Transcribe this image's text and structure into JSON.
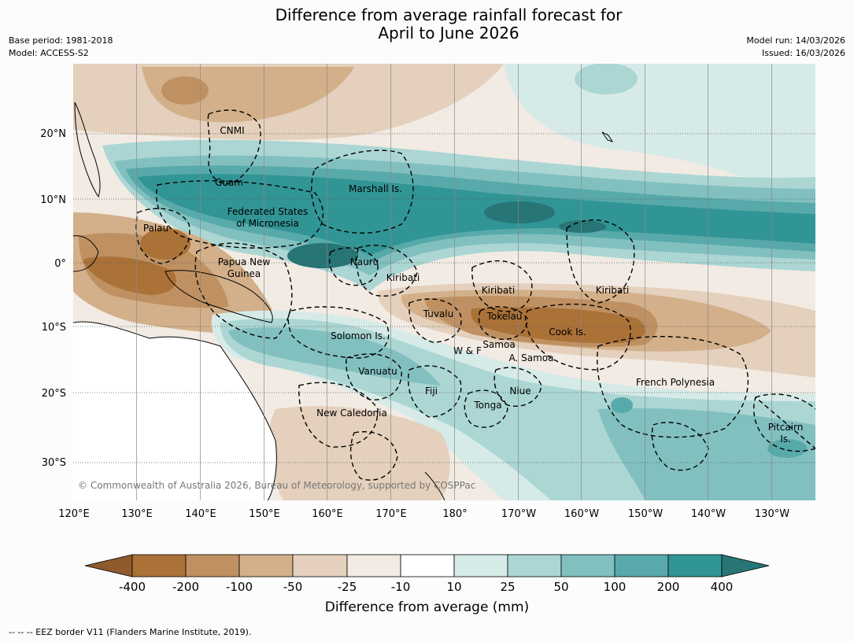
{
  "title_line1": "Difference from average rainfall forecast for",
  "title_line2": "April to June 2026",
  "meta_left": {
    "base_period": "Base period: 1981-2018",
    "model": "Model: ACCESS-S2"
  },
  "meta_right": {
    "model_run": "Model run: 14/03/2026",
    "issued": "Issued: 16/03/2026"
  },
  "colors": {
    "brown_4": "#8f5a2c",
    "brown_3": "#ab7238",
    "brown_2": "#bf9162",
    "brown_1": "#d3b08a",
    "brown_0": "#e4d0bc",
    "tan_light": "#f2ebe3",
    "white": "#ffffff",
    "teal_0": "#d6ebe8",
    "teal_1": "#abd6d4",
    "teal_2": "#82c0c0",
    "teal_3": "#58aaaa",
    "teal_4": "#329595",
    "teal_5": "#277575"
  },
  "lat_labels": [
    "20°N",
    "10°N",
    "0°",
    "10°S",
    "20°S",
    "30°S"
  ],
  "lon_labels": [
    "120°E",
    "130°E",
    "140°E",
    "150°E",
    "160°E",
    "170°E",
    "180°",
    "170°W",
    "160°W",
    "150°W",
    "140°W",
    "130°W"
  ],
  "regions": {
    "cnmi": "CNMI",
    "guam": "Guam",
    "marshall": "Marshall Is.",
    "fsm1": "Federated States",
    "fsm2": "of Micronesia",
    "palau": "Palau",
    "png1": "Papua New",
    "png2": "Guinea",
    "nauru": "Nauru",
    "kiribati_w": "Kiribati",
    "kiribati_c": "Kiribati",
    "kiribati_e": "Kiribati",
    "tuvalu": "Tuvalu",
    "tokelau": "Tokelau",
    "cook": "Cook Is.",
    "solomon": "Solomon Is.",
    "wf": "W & F",
    "samoa": "Samoa",
    "asamoa": "A. Samoa",
    "vanuatu": "Vanuatu",
    "fiji": "Fiji",
    "niue": "Niue",
    "tonga": "Tonga",
    "newcal": "New Caledonia",
    "frpoly": "French Polynesia",
    "pitcairn1": "Pitcairn",
    "pitcairn2": "Is."
  },
  "copyright": "© Commonwealth of Australia 2026, Bureau of Meteorology, supported by COSPPac",
  "colorbar": {
    "ticks": [
      "-400",
      "-200",
      "-100",
      "-50",
      "-25",
      "-10",
      "10",
      "25",
      "50",
      "100",
      "200",
      "400"
    ],
    "label": "Difference from average (mm)"
  },
  "footer": "-- -- -- EEZ border V11 (Flanders Marine Institute, 2019)."
}
